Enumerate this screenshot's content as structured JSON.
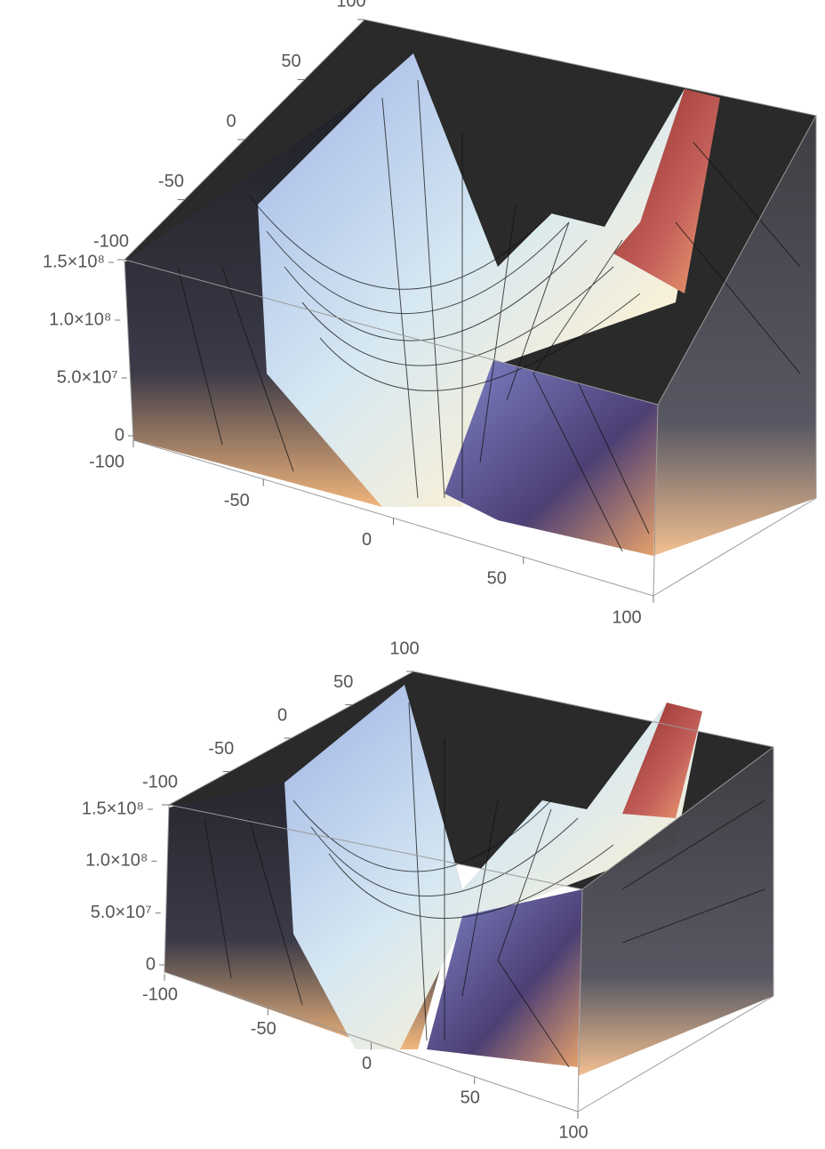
{
  "chart_data": [
    {
      "type": "surface3d",
      "xlim": [
        -100,
        100
      ],
      "xticks": [
        -100,
        -50,
        0,
        50,
        100
      ],
      "ylim": [
        -100,
        100
      ],
      "yticks": [
        -100,
        -50,
        0,
        50,
        100
      ],
      "zlim": [
        0,
        150000000
      ],
      "zticks": [
        0,
        {
          "value": 50000000,
          "label": "5.0×10⁷"
        },
        {
          "value": 100000000,
          "label": "1.0×10⁸"
        },
        {
          "value": 150000000,
          "label": "1.5×10⁸"
        }
      ]
    },
    {
      "type": "surface3d",
      "xlim": [
        -100,
        100
      ],
      "xticks": [
        -100,
        -50,
        0,
        50,
        100
      ],
      "ylim": [
        -100,
        100
      ],
      "yticks": [
        -100,
        -50,
        0,
        50,
        100
      ],
      "zlim": [
        0,
        150000000
      ],
      "zticks": [
        0,
        {
          "value": 50000000,
          "label": "5.0×10⁷"
        },
        {
          "value": 100000000,
          "label": "1.0×10⁸"
        },
        {
          "value": 150000000,
          "label": "1.5×10⁸"
        }
      ]
    }
  ]
}
